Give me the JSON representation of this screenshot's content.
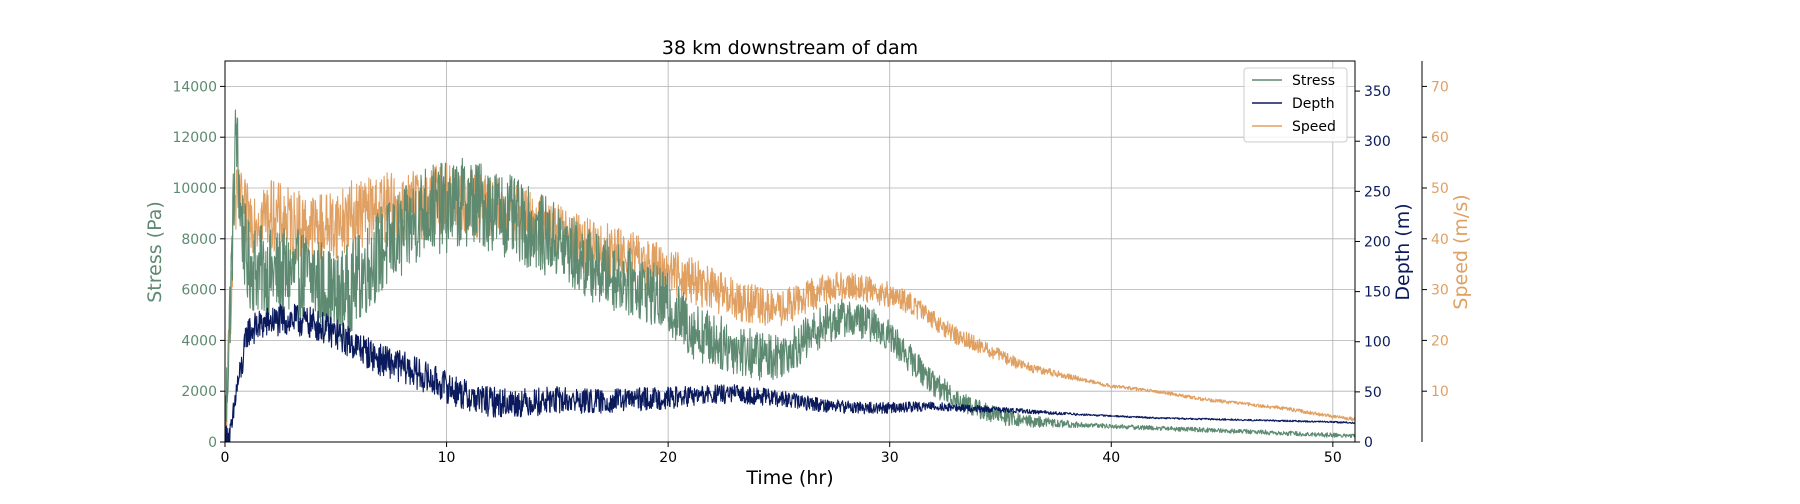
{
  "chart_data": {
    "type": "line",
    "title": "38 km downstream of dam",
    "xlabel": "Time (hr)",
    "xlim": [
      0,
      51
    ],
    "x_ticks": [
      0,
      10,
      20,
      30,
      40,
      50
    ],
    "grid": true,
    "legend_position": "top-right",
    "axes": [
      {
        "id": "stress",
        "label": "Stress (Pa)",
        "position": "left",
        "color": "#5d8a70",
        "ylim": [
          0,
          15000
        ],
        "ticks": [
          0,
          2000,
          4000,
          6000,
          8000,
          10000,
          12000,
          14000
        ]
      },
      {
        "id": "depth",
        "label": "Depth (m)",
        "position": "right",
        "color": "#0a1a5c",
        "ylim": [
          0,
          380
        ],
        "ticks": [
          0,
          50,
          100,
          150,
          200,
          250,
          300,
          350
        ]
      },
      {
        "id": "speed",
        "label": "Speed (m/s)",
        "position": "right-outer",
        "color": "#e0a062",
        "ylim": [
          0,
          75
        ],
        "ticks": [
          10,
          20,
          30,
          40,
          50,
          60,
          70
        ]
      }
    ],
    "series": [
      {
        "name": "Stress",
        "axis": "stress",
        "color": "#5d8a70",
        "noise": 1800,
        "x": [
          0,
          0.3,
          0.5,
          0.7,
          1,
          2,
          3,
          4,
          5,
          6,
          7,
          8,
          9,
          10,
          11,
          12,
          13,
          14,
          15,
          16,
          17,
          18,
          19,
          20,
          21,
          22,
          23,
          24,
          25,
          26,
          27,
          28,
          29,
          30,
          31,
          32,
          33,
          34,
          35,
          36,
          38,
          40,
          42,
          44,
          46,
          48,
          50,
          51
        ],
        "values": [
          0,
          7000,
          12500,
          9000,
          7000,
          6600,
          6600,
          6500,
          5600,
          6400,
          7500,
          8100,
          9200,
          9200,
          9500,
          9200,
          8800,
          8300,
          7900,
          7200,
          6700,
          6400,
          6000,
          5400,
          4500,
          4000,
          3700,
          3400,
          3400,
          3900,
          4600,
          4900,
          4700,
          4200,
          3200,
          2300,
          1700,
          1300,
          1000,
          850,
          700,
          620,
          550,
          480,
          420,
          340,
          270,
          240
        ]
      },
      {
        "name": "Depth",
        "axis": "depth",
        "color": "#0a1a5c",
        "noise": 16,
        "x": [
          0,
          0.3,
          0.5,
          0.8,
          1,
          2,
          3,
          4,
          5,
          6,
          7,
          8,
          9,
          10,
          11,
          12,
          13,
          14,
          15,
          16,
          17,
          18,
          20,
          22,
          23,
          24,
          25,
          26,
          27,
          28,
          29,
          30,
          31,
          32,
          33,
          34,
          35,
          36,
          38,
          40,
          42,
          44,
          46,
          48,
          50,
          51
        ],
        "values": [
          0,
          10,
          50,
          80,
          110,
          120,
          122,
          118,
          108,
          95,
          82,
          75,
          65,
          55,
          45,
          40,
          39,
          40,
          42,
          41,
          40,
          42,
          44,
          47,
          48,
          46,
          43,
          40,
          37,
          35,
          34,
          34,
          35,
          36,
          34,
          33,
          32,
          31,
          28,
          26,
          24,
          23,
          22,
          21,
          20,
          19
        ]
      },
      {
        "name": "Speed",
        "axis": "speed",
        "color": "#e0a062",
        "noise": 7,
        "x": [
          0,
          0.2,
          0.4,
          0.6,
          1,
          2,
          3,
          4,
          5,
          6,
          7,
          8,
          9,
          10,
          11,
          12,
          13,
          14,
          15,
          16,
          17,
          18,
          19,
          20,
          21,
          22,
          23,
          24,
          25,
          26,
          27,
          28,
          29,
          30,
          31,
          32,
          33,
          34,
          35,
          36,
          38,
          40,
          42,
          44,
          46,
          48,
          50,
          51
        ],
        "values": [
          0,
          20,
          46,
          47,
          44,
          45,
          43,
          42,
          43,
          45,
          46,
          46,
          47,
          48,
          47,
          46,
          45,
          43,
          41,
          39,
          38,
          37,
          35,
          34,
          32,
          30,
          28,
          27,
          26,
          28,
          30,
          31,
          30,
          29,
          27,
          24,
          21,
          19,
          17,
          15,
          13,
          11,
          10,
          8.5,
          7.5,
          6.5,
          5,
          4.5
        ]
      }
    ]
  }
}
